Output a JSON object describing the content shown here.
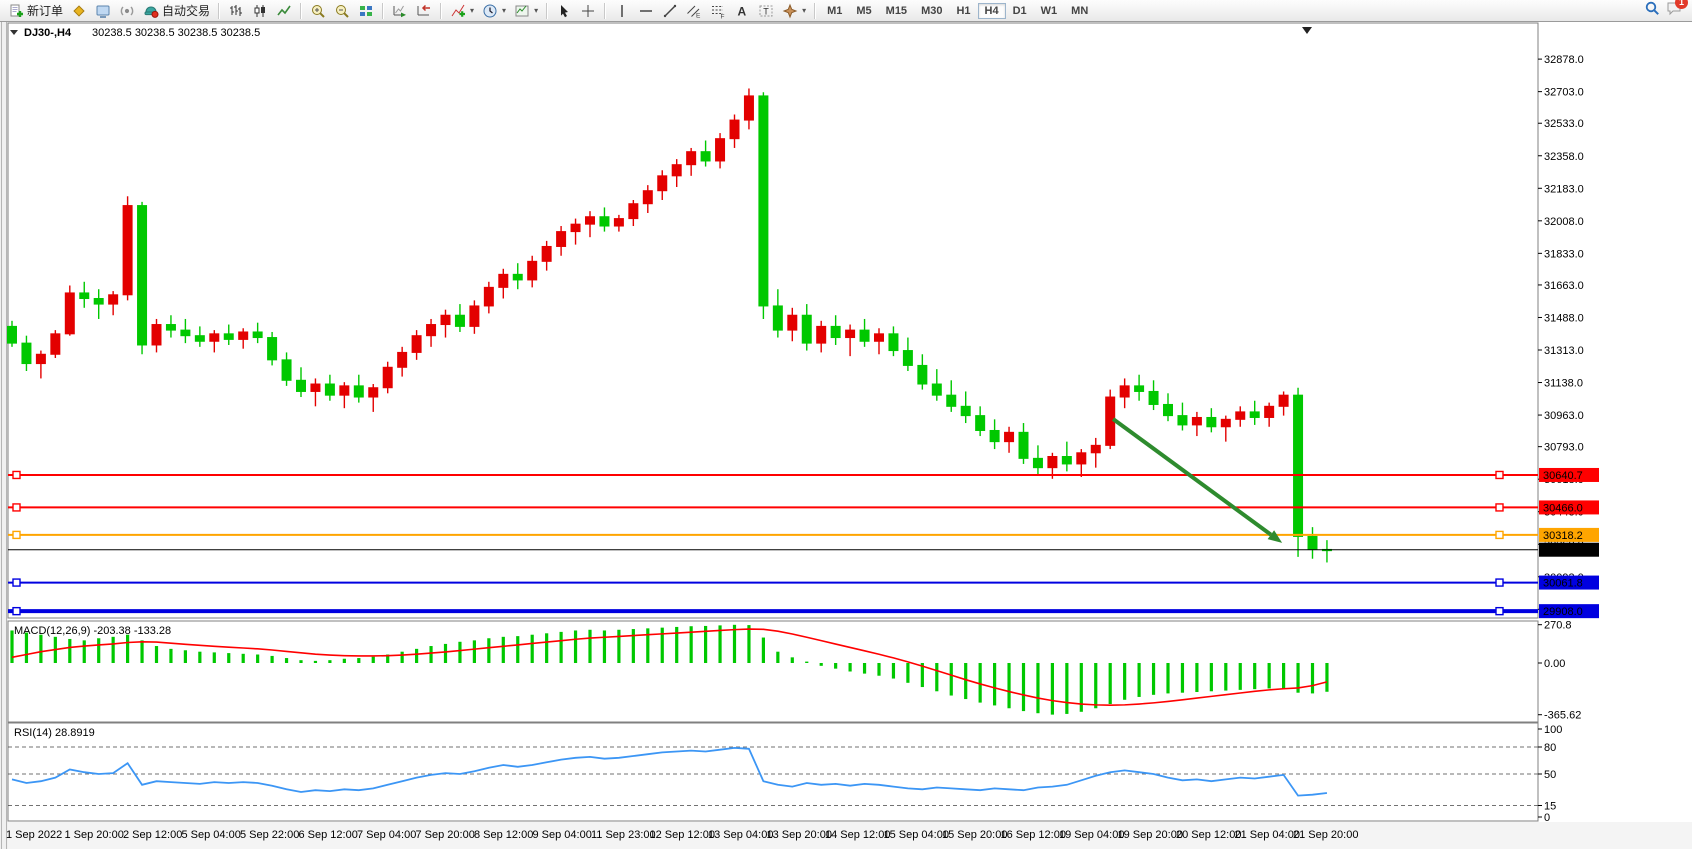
{
  "window": {
    "symbol_period": "DJ30-,H4",
    "quote": "30238.5 30238.5 30238.5 30238.5"
  },
  "toolbar": {
    "groups": [
      {
        "items": [
          {
            "name": "new-order",
            "label": "新订单"
          },
          {
            "name": "market"
          },
          {
            "name": "metaeditor"
          },
          {
            "name": "signals"
          },
          {
            "name": "autotrading",
            "label": "自动交易"
          }
        ]
      },
      {
        "items": [
          {
            "name": "bar-chart"
          },
          {
            "name": "candle-chart"
          },
          {
            "name": "line-chart"
          }
        ]
      },
      {
        "items": [
          {
            "name": "zoom-in"
          },
          {
            "name": "zoom-out"
          },
          {
            "name": "tile-windows"
          }
        ]
      },
      {
        "items": [
          {
            "name": "auto-scroll"
          },
          {
            "name": "chart-shift"
          }
        ]
      },
      {
        "items": [
          {
            "name": "indicators",
            "caret": true
          },
          {
            "name": "periods",
            "caret": true
          },
          {
            "name": "templates",
            "caret": true
          }
        ]
      },
      {
        "items": [
          {
            "name": "cursor"
          },
          {
            "name": "crosshair"
          }
        ]
      },
      {
        "items": [
          {
            "name": "vertical-line"
          },
          {
            "name": "horizontal-line"
          },
          {
            "name": "trendline"
          },
          {
            "name": "equidistant-channel"
          },
          {
            "name": "fibonacci"
          },
          {
            "name": "text"
          },
          {
            "name": "text-label"
          },
          {
            "name": "arrows",
            "caret": true
          }
        ]
      }
    ],
    "timeframes": [
      "M1",
      "M5",
      "M15",
      "M30",
      "H1",
      "H4",
      "D1",
      "W1",
      "MN"
    ],
    "active_timeframe": "H4",
    "chat_badge": "1"
  },
  "chart_data": {
    "type": "candlestick",
    "symbol": "DJ30-",
    "period": "H4",
    "colors": {
      "up": "#e30000",
      "down": "#00c800",
      "background": "#ffffff",
      "foreground": "#000000"
    },
    "price_axis_ticks": [
      "32878.0",
      "32703.0",
      "32533.0",
      "32358.0",
      "32183.0",
      "32008.0",
      "31833.0",
      "31663.0",
      "31488.0",
      "31313.0",
      "31138.0",
      "30963.0",
      "30793.0",
      "30618.0",
      "30443.0",
      "30268.0",
      "30093.0",
      "29918.0"
    ],
    "time_labels": [
      "1 Sep 2022",
      "1 Sep 20:00",
      "2 Sep 12:00",
      "5 Sep 04:00",
      "5 Sep 22:00",
      "6 Sep 12:00",
      "7 Sep 04:00",
      "7 Sep 20:00",
      "8 Sep 12:00",
      "9 Sep 04:00",
      "11 Sep 23:00",
      "12 Sep 12:00",
      "13 Sep 04:00",
      "13 Sep 20:00",
      "14 Sep 12:00",
      "15 Sep 04:00",
      "15 Sep 20:00",
      "16 Sep 12:00",
      "19 Sep 04:00",
      "19 Sep 20:00",
      "20 Sep 12:00",
      "21 Sep 04:00",
      "21 Sep 20:00"
    ],
    "candles": [
      [
        31440,
        31470,
        31330,
        31350
      ],
      [
        31350,
        31390,
        31200,
        31240
      ],
      [
        31240,
        31310,
        31160,
        31290
      ],
      [
        31290,
        31420,
        31270,
        31400
      ],
      [
        31400,
        31660,
        31390,
        31620
      ],
      [
        31620,
        31680,
        31540,
        31590
      ],
      [
        31590,
        31640,
        31480,
        31560
      ],
      [
        31560,
        31630,
        31500,
        31610
      ],
      [
        31610,
        32140,
        31580,
        32090
      ],
      [
        32090,
        32110,
        31290,
        31340
      ],
      [
        31340,
        31480,
        31300,
        31450
      ],
      [
        31450,
        31500,
        31380,
        31420
      ],
      [
        31420,
        31480,
        31350,
        31390
      ],
      [
        31390,
        31440,
        31330,
        31360
      ],
      [
        31360,
        31420,
        31300,
        31400
      ],
      [
        31400,
        31450,
        31340,
        31370
      ],
      [
        31370,
        31430,
        31320,
        31410
      ],
      [
        31410,
        31460,
        31350,
        31380
      ],
      [
        31380,
        31410,
        31230,
        31260
      ],
      [
        31260,
        31300,
        31120,
        31150
      ],
      [
        31150,
        31220,
        31060,
        31090
      ],
      [
        31090,
        31160,
        31010,
        31130
      ],
      [
        31130,
        31180,
        31040,
        31070
      ],
      [
        31070,
        31140,
        31000,
        31120
      ],
      [
        31120,
        31180,
        31030,
        31060
      ],
      [
        31060,
        31130,
        30980,
        31110
      ],
      [
        31110,
        31250,
        31080,
        31220
      ],
      [
        31220,
        31330,
        31170,
        31300
      ],
      [
        31300,
        31420,
        31260,
        31390
      ],
      [
        31390,
        31480,
        31330,
        31450
      ],
      [
        31450,
        31530,
        31380,
        31500
      ],
      [
        31500,
        31560,
        31410,
        31440
      ],
      [
        31440,
        31580,
        31400,
        31550
      ],
      [
        31550,
        31680,
        31510,
        31650
      ],
      [
        31650,
        31750,
        31590,
        31720
      ],
      [
        31720,
        31780,
        31640,
        31690
      ],
      [
        31690,
        31820,
        31650,
        31790
      ],
      [
        31790,
        31900,
        31740,
        31870
      ],
      [
        31870,
        31980,
        31820,
        31950
      ],
      [
        31950,
        32020,
        31880,
        31990
      ],
      [
        31990,
        32060,
        31920,
        32030
      ],
      [
        32030,
        32080,
        31950,
        31980
      ],
      [
        31980,
        32040,
        31950,
        32020
      ],
      [
        32020,
        32120,
        31980,
        32100
      ],
      [
        32100,
        32200,
        32050,
        32170
      ],
      [
        32170,
        32280,
        32120,
        32250
      ],
      [
        32250,
        32340,
        32190,
        32310
      ],
      [
        32310,
        32400,
        32250,
        32380
      ],
      [
        32380,
        32440,
        32300,
        32330
      ],
      [
        32330,
        32480,
        32290,
        32450
      ],
      [
        32450,
        32580,
        32400,
        32550
      ],
      [
        32550,
        32720,
        32500,
        32680
      ],
      [
        32680,
        32700,
        31480,
        31550
      ],
      [
        31550,
        31640,
        31380,
        31420
      ],
      [
        31420,
        31540,
        31360,
        31500
      ],
      [
        31500,
        31560,
        31310,
        31350
      ],
      [
        31350,
        31470,
        31300,
        31440
      ],
      [
        31440,
        31500,
        31340,
        31380
      ],
      [
        31380,
        31450,
        31280,
        31420
      ],
      [
        31420,
        31480,
        31330,
        31360
      ],
      [
        31360,
        31430,
        31290,
        31400
      ],
      [
        31400,
        31440,
        31280,
        31310
      ],
      [
        31310,
        31380,
        31200,
        31230
      ],
      [
        31230,
        31290,
        31100,
        31130
      ],
      [
        31130,
        31210,
        31040,
        31070
      ],
      [
        31070,
        31150,
        30980,
        31010
      ],
      [
        31010,
        31090,
        30920,
        30960
      ],
      [
        30960,
        31010,
        30850,
        30880
      ],
      [
        30880,
        30940,
        30780,
        30820
      ],
      [
        30820,
        30900,
        30760,
        30870
      ],
      [
        30870,
        30920,
        30700,
        30730
      ],
      [
        30730,
        30800,
        30640,
        30680
      ],
      [
        30680,
        30760,
        30620,
        30740
      ],
      [
        30740,
        30820,
        30660,
        30700
      ],
      [
        30700,
        30780,
        30630,
        30760
      ],
      [
        30760,
        30840,
        30680,
        30800
      ],
      [
        30800,
        31100,
        30780,
        31060
      ],
      [
        31060,
        31160,
        31000,
        31120
      ],
      [
        31120,
        31180,
        31040,
        31090
      ],
      [
        31090,
        31150,
        30990,
        31020
      ],
      [
        31020,
        31080,
        30930,
        30960
      ],
      [
        30960,
        31030,
        30880,
        30910
      ],
      [
        30910,
        30980,
        30850,
        30950
      ],
      [
        30950,
        31000,
        30870,
        30900
      ],
      [
        30900,
        30960,
        30820,
        30940
      ],
      [
        30940,
        31010,
        30900,
        30980
      ],
      [
        30980,
        31040,
        30910,
        30950
      ],
      [
        30950,
        31030,
        30900,
        31010
      ],
      [
        31010,
        31090,
        30960,
        31070
      ],
      [
        31070,
        31110,
        30200,
        30310
      ],
      [
        30310,
        30360,
        30190,
        30240
      ],
      [
        30240,
        30290,
        30170,
        30238.5
      ]
    ],
    "objects": {
      "hlines": [
        {
          "price": 30640.7,
          "color": "#ff0000",
          "width": 2,
          "label": "30640.7"
        },
        {
          "price": 30466.0,
          "color": "#ff0000",
          "width": 2,
          "label": "30466.0"
        },
        {
          "price": 30318.2,
          "color": "#ffa500",
          "width": 2,
          "label": "30318.2"
        },
        {
          "price": 30061.8,
          "color": "#0000e0",
          "width": 2,
          "label": "30061.8"
        },
        {
          "price": 29908.0,
          "color": "#0000e0",
          "width": 4,
          "label": "29908.0"
        }
      ],
      "current_price": {
        "value": 30238.5,
        "label": "30238.5",
        "color": "#000000"
      },
      "arrow": {
        "from_index": 76.2,
        "from_price": 30942,
        "to_index": 87.9,
        "to_price": 30275,
        "color": "#2e8b2e",
        "width": 4
      }
    },
    "macd": {
      "label": "MACD(12,26,9)",
      "value_text": "-203.38 -133.28",
      "axis_labels": [
        "270.8",
        "0.00",
        "-365.62"
      ],
      "hist_color": "#00c800",
      "signal_color": "#ff0000",
      "histogram": [
        230,
        215,
        200,
        185,
        170,
        160,
        175,
        185,
        200,
        160,
        120,
        100,
        90,
        80,
        75,
        70,
        65,
        60,
        50,
        35,
        20,
        15,
        20,
        30,
        35,
        45,
        60,
        80,
        100,
        120,
        135,
        150,
        160,
        175,
        185,
        190,
        200,
        210,
        220,
        230,
        235,
        230,
        235,
        240,
        245,
        250,
        255,
        260,
        262,
        266,
        270,
        268,
        180,
        80,
        40,
        10,
        -20,
        -40,
        -60,
        -75,
        -90,
        -110,
        -140,
        -170,
        -200,
        -230,
        -255,
        -280,
        -300,
        -320,
        -340,
        -355,
        -365,
        -360,
        -345,
        -320,
        -290,
        -260,
        -240,
        -225,
        -215,
        -210,
        -205,
        -200,
        -195,
        -190,
        -185,
        -180,
        -185,
        -210,
        -215,
        -203.38
      ],
      "signal": [
        40,
        60,
        80,
        95,
        110,
        120,
        128,
        135,
        145,
        150,
        148,
        140,
        132,
        125,
        118,
        112,
        106,
        100,
        92,
        82,
        72,
        62,
        56,
        52,
        50,
        50,
        52,
        56,
        62,
        70,
        78,
        88,
        98,
        108,
        118,
        128,
        138,
        148,
        158,
        168,
        176,
        182,
        188,
        194,
        200,
        206,
        212,
        218,
        224,
        230,
        236,
        240,
        238,
        225,
        205,
        182,
        158,
        134,
        110,
        86,
        62,
        36,
        8,
        -22,
        -54,
        -86,
        -118,
        -148,
        -176,
        -202,
        -226,
        -248,
        -266,
        -280,
        -290,
        -296,
        -298,
        -296,
        -290,
        -282,
        -272,
        -260,
        -248,
        -236,
        -224,
        -212,
        -200,
        -190,
        -182,
        -176,
        -160,
        -133.28
      ]
    },
    "rsi": {
      "label": "RSI(14)",
      "value_text": "28.8919",
      "axis_labels": [
        "100",
        "80",
        "50",
        "15",
        "0"
      ],
      "levels": [
        80,
        50,
        15
      ],
      "color": "#3c96f5",
      "series": [
        44,
        40,
        42,
        46,
        55,
        52,
        50,
        51,
        62,
        38,
        42,
        41,
        40,
        39,
        41,
        40,
        41,
        40,
        37,
        33,
        30,
        32,
        31,
        33,
        32,
        34,
        38,
        42,
        46,
        49,
        51,
        50,
        53,
        57,
        60,
        58,
        60,
        63,
        66,
        68,
        69,
        67,
        68,
        70,
        72,
        74,
        75,
        76,
        75,
        77,
        79,
        78,
        42,
        38,
        36,
        40,
        38,
        39,
        37,
        39,
        38,
        36,
        34,
        33,
        35,
        34,
        33,
        32,
        34,
        33,
        32,
        35,
        36,
        38,
        43,
        48,
        52,
        54,
        52,
        50,
        46,
        43,
        44,
        42,
        44,
        46,
        45,
        47,
        49,
        26,
        27,
        28.89
      ]
    }
  }
}
